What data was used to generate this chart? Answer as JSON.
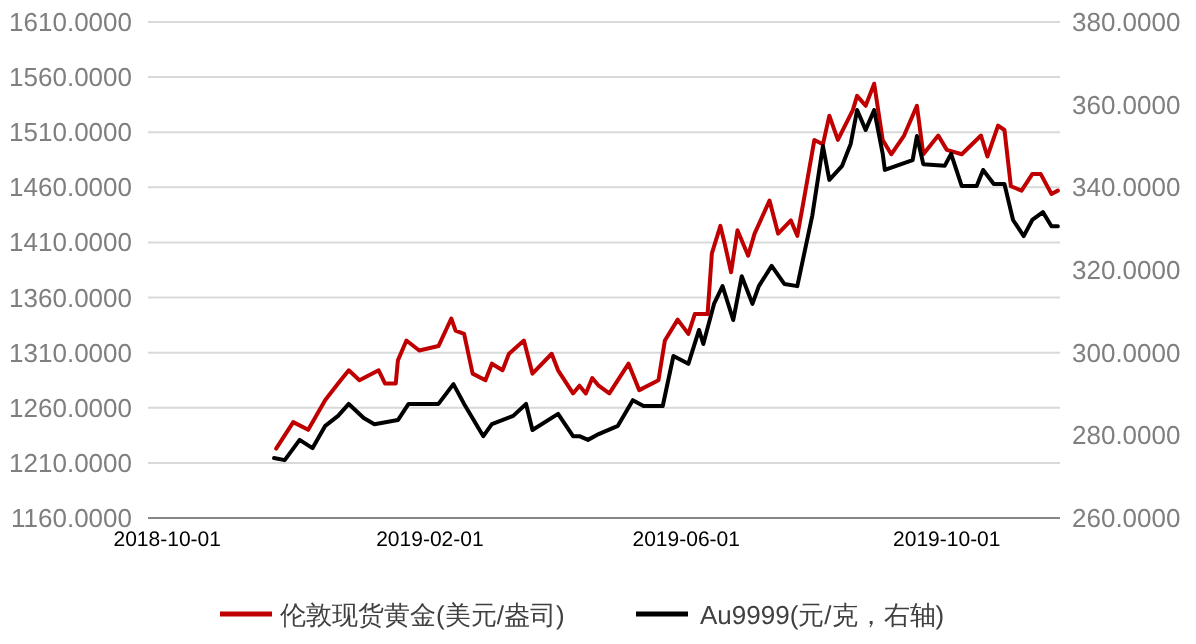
{
  "chart_data": {
    "type": "line",
    "legend": "bottom",
    "grid": "y",
    "xlim": [
      "2018-09-22",
      "2019-11-23"
    ],
    "xticks": [
      "2018-10-01",
      "2019-02-01",
      "2019-06-01",
      "2019-10-01"
    ],
    "ylim": [
      1160,
      1610
    ],
    "yticks": [
      {
        "value": 1160,
        "label": "1160.0000"
      },
      {
        "value": 1210,
        "label": "1210.0000"
      },
      {
        "value": 1260,
        "label": "1260.0000"
      },
      {
        "value": 1310,
        "label": "1310.0000"
      },
      {
        "value": 1360,
        "label": "1360.0000"
      },
      {
        "value": 1410,
        "label": "1410.0000"
      },
      {
        "value": 1460,
        "label": "1460.0000"
      },
      {
        "value": 1510,
        "label": "1510.0000"
      },
      {
        "value": 1560,
        "label": "1560.0000"
      },
      {
        "value": 1610,
        "label": "1610.0000"
      }
    ],
    "y2lim": [
      260,
      380
    ],
    "y2ticks": [
      {
        "value": 260,
        "label": "260.0000"
      },
      {
        "value": 280,
        "label": "280.0000"
      },
      {
        "value": 300,
        "label": "300.0000"
      },
      {
        "value": 320,
        "label": "320.0000"
      },
      {
        "value": 340,
        "label": "340.0000"
      },
      {
        "value": 360,
        "label": "360.0000"
      },
      {
        "value": 380,
        "label": "380.0000"
      }
    ],
    "series": [
      {
        "name": "伦敦现货黄金(美元/盎司)",
        "color": "#c00000",
        "x": [
          "2018-11-21",
          "2018-11-29",
          "2018-12-06",
          "2018-12-14",
          "2018-12-20",
          "2018-12-25",
          "2018-12-30",
          "2019-01-08",
          "2019-01-11",
          "2019-01-16",
          "2019-01-17",
          "2019-01-21",
          "2019-01-27",
          "2019-02-05",
          "2019-02-11",
          "2019-02-13",
          "2019-02-17",
          "2019-02-21",
          "2019-02-27",
          "2019-03-02",
          "2019-03-07",
          "2019-03-10",
          "2019-03-17",
          "2019-03-21",
          "2019-03-30",
          "2019-04-02",
          "2019-04-09",
          "2019-04-12",
          "2019-04-15",
          "2019-04-18",
          "2019-04-21",
          "2019-04-26",
          "2019-05-05",
          "2019-05-10",
          "2019-05-19",
          "2019-05-22",
          "2019-05-28",
          "2019-06-02",
          "2019-06-05",
          "2019-06-11",
          "2019-06-13",
          "2019-06-17",
          "2019-06-19",
          "2019-06-22",
          "2019-06-25",
          "2019-06-30",
          "2019-07-03",
          "2019-07-10",
          "2019-07-14",
          "2019-07-20",
          "2019-07-23",
          "2019-07-26",
          "2019-07-31",
          "2019-08-04",
          "2019-08-07",
          "2019-08-11",
          "2019-08-18",
          "2019-08-20",
          "2019-08-24",
          "2019-08-28",
          "2019-09-01",
          "2019-09-05",
          "2019-09-11",
          "2019-09-17",
          "2019-09-20",
          "2019-09-27",
          "2019-10-01",
          "2019-10-08",
          "2019-10-17",
          "2019-10-20",
          "2019-10-25",
          "2019-10-28",
          "2019-10-31",
          "2019-11-05",
          "2019-11-10",
          "2019-11-14",
          "2019-11-19",
          "2019-11-22"
        ],
        "values": [
          1223,
          1247,
          1240,
          1267,
          1282,
          1294,
          1285,
          1294,
          1282,
          1282,
          1303,
          1321,
          1312,
          1316,
          1341,
          1330,
          1327,
          1291,
          1285,
          1300,
          1294,
          1309,
          1321,
          1291,
          1309,
          1294,
          1273,
          1280,
          1273,
          1287,
          1280,
          1273,
          1300,
          1276,
          1285,
          1321,
          1340,
          1327,
          1345,
          1345,
          1400,
          1425,
          1409,
          1383,
          1421,
          1398,
          1418,
          1448,
          1418,
          1430,
          1416,
          1448,
          1503,
          1499,
          1525,
          1503,
          1530,
          1543,
          1534,
          1554,
          1503,
          1490,
          1507,
          1534,
          1490,
          1507,
          1494,
          1490,
          1507,
          1488,
          1516,
          1512,
          1461,
          1457,
          1472,
          1472,
          1454,
          1457
        ]
      },
      {
        "name": "Au9999(元/克，右轴)",
        "color": "#000000",
        "axis": "y2",
        "x": [
          "2018-11-20",
          "2018-11-25",
          "2018-12-02",
          "2018-12-08",
          "2018-12-14",
          "2018-12-20",
          "2018-12-25",
          "2019-01-01",
          "2019-01-06",
          "2019-01-17",
          "2019-01-22",
          "2019-02-05",
          "2019-02-12",
          "2019-02-17",
          "2019-02-26",
          "2019-03-02",
          "2019-03-12",
          "2019-03-18",
          "2019-03-21",
          "2019-04-02",
          "2019-04-09",
          "2019-04-12",
          "2019-04-16",
          "2019-04-21",
          "2019-04-30",
          "2019-05-07",
          "2019-05-12",
          "2019-05-21",
          "2019-05-26",
          "2019-06-02",
          "2019-06-07",
          "2019-06-09",
          "2019-06-14",
          "2019-06-18",
          "2019-06-23",
          "2019-06-27",
          "2019-07-02",
          "2019-07-05",
          "2019-07-11",
          "2019-07-17",
          "2019-07-23",
          "2019-07-30",
          "2019-08-02",
          "2019-08-04",
          "2019-08-07",
          "2019-08-13",
          "2019-08-17",
          "2019-08-20",
          "2019-08-24",
          "2019-08-28",
          "2019-09-01",
          "2019-09-02",
          "2019-09-15",
          "2019-09-17",
          "2019-09-20",
          "2019-09-30",
          "2019-10-03",
          "2019-10-08",
          "2019-10-15",
          "2019-10-18",
          "2019-10-23",
          "2019-10-28",
          "2019-11-01",
          "2019-11-06",
          "2019-11-10",
          "2019-11-15",
          "2019-11-19",
          "2019-11-22"
        ],
        "values": [
          274.5,
          274.0,
          278.9,
          276.9,
          282.3,
          284.7,
          287.6,
          284.2,
          282.7,
          283.7,
          287.6,
          287.6,
          292.4,
          287.6,
          279.8,
          282.7,
          284.7,
          287.6,
          281.3,
          285.2,
          279.8,
          279.8,
          278.9,
          280.3,
          282.3,
          288.5,
          287.1,
          287.1,
          299.2,
          297.3,
          305.5,
          302.1,
          311.8,
          316.1,
          307.9,
          318.5,
          311.8,
          316.1,
          321.0,
          316.6,
          316.1,
          333.1,
          343.2,
          350.0,
          341.8,
          345.2,
          350.5,
          358.7,
          353.9,
          358.7,
          348.1,
          344.2,
          346.6,
          352.4,
          345.6,
          345.2,
          348.1,
          340.3,
          340.3,
          344.2,
          340.8,
          340.8,
          332.1,
          328.2,
          332.1,
          334.0,
          330.6,
          330.6
        ]
      }
    ]
  }
}
